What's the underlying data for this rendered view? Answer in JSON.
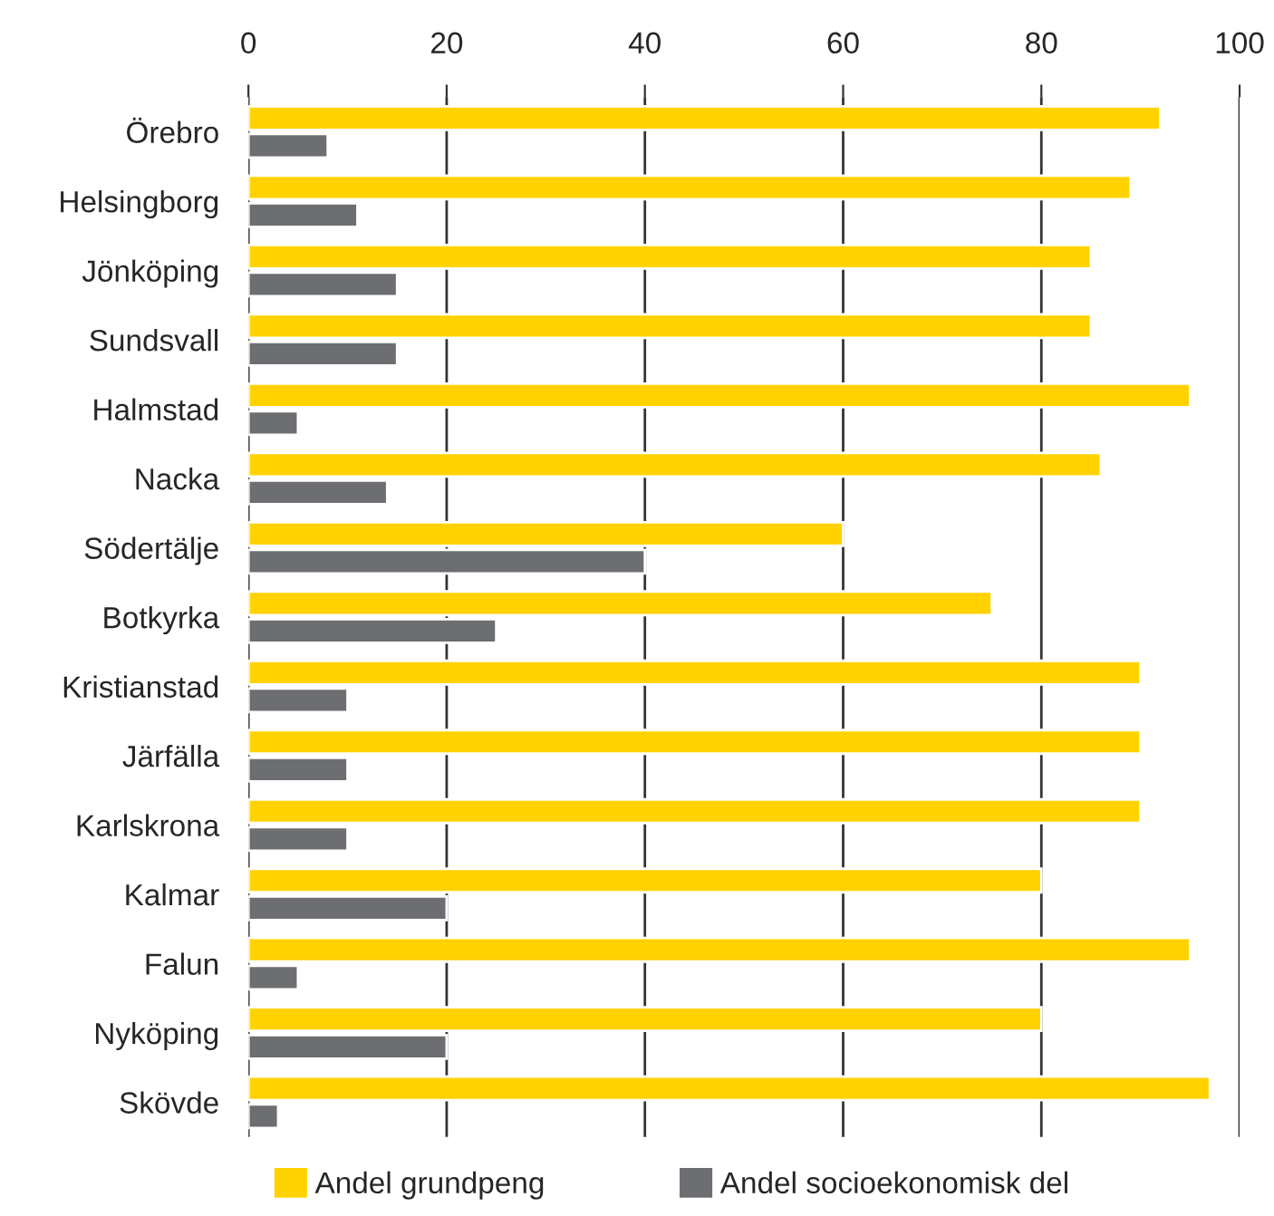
{
  "chart_data": {
    "type": "bar",
    "orientation": "horizontal",
    "categories": [
      "Örebro",
      "Helsingborg",
      "Jönköping",
      "Sundsvall",
      "Halmstad",
      "Nacka",
      "Södertälje",
      "Botkyrka",
      "Kristianstad",
      "Järfälla",
      "Karlskrona",
      "Kalmar",
      "Falun",
      "Nyköping",
      "Skövde"
    ],
    "series": [
      {
        "name": "Andel grundpeng",
        "color": "#ffd200",
        "values": [
          92,
          89,
          85,
          85,
          95,
          86,
          60,
          75,
          90,
          90,
          90,
          80,
          95,
          80,
          97
        ]
      },
      {
        "name": "Andel socioekonomisk del",
        "color": "#6d6e71",
        "values": [
          8,
          11,
          15,
          15,
          5,
          14,
          40,
          25,
          10,
          10,
          10,
          20,
          5,
          20,
          3
        ]
      }
    ],
    "xlim": [
      0,
      100
    ],
    "xticks": [
      0,
      20,
      40,
      60,
      80,
      100
    ],
    "grid": "x",
    "legend": "bottom"
  }
}
